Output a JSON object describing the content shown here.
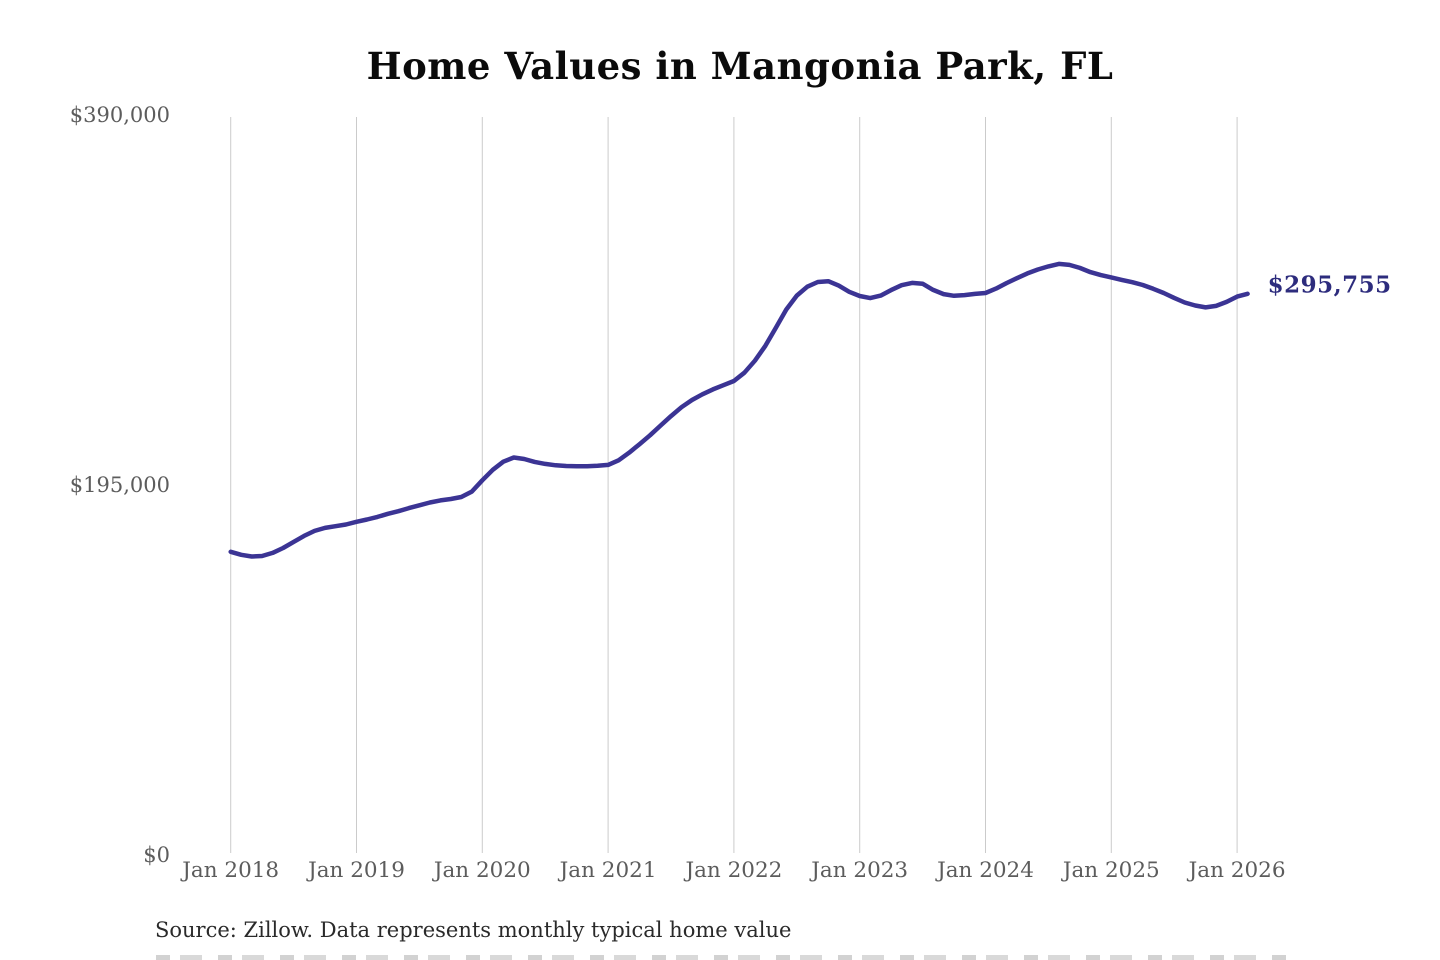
{
  "page": {
    "background": "#ffffff"
  },
  "chart": {
    "title": "Home Values in Mangonia Park, FL",
    "source_note": "Source: Zillow. Data represents monthly typical home value",
    "annotation_label": "$295,755",
    "colors": {
      "line": "#3b3494",
      "annotation": "#2d2c7d",
      "gridline": "#cbcbcb",
      "axis_text": "#5c5c5c",
      "title_text": "#0b0b0b"
    }
  },
  "chart_data": {
    "type": "line",
    "title": "Home Values in Mangonia Park, FL",
    "xlabel": "",
    "ylabel": "",
    "ylim": [
      0,
      390000
    ],
    "grid": "vertical-only",
    "legend": "none",
    "x_tick_labels": [
      "Jan 2018",
      "Jan 2019",
      "Jan 2020",
      "Jan 2021",
      "Jan 2022",
      "Jan 2023",
      "Jan 2024",
      "Jan 2025",
      "Jan 2026"
    ],
    "y_ticks": [
      {
        "label": "$390,000",
        "value": 390000
      },
      {
        "label": "$195,000",
        "value": 195000
      },
      {
        "label": "$0",
        "value": 0
      }
    ],
    "series": [
      {
        "name": "Monthly typical home value",
        "end_label": "$295,755",
        "end_value": 295755,
        "months": [
          "2018-01",
          "2018-02",
          "2018-03",
          "2018-04",
          "2018-05",
          "2018-06",
          "2018-07",
          "2018-08",
          "2018-09",
          "2018-10",
          "2018-11",
          "2018-12",
          "2019-01",
          "2019-02",
          "2019-03",
          "2019-04",
          "2019-05",
          "2019-06",
          "2019-07",
          "2019-08",
          "2019-09",
          "2019-10",
          "2019-11",
          "2019-12",
          "2020-01",
          "2020-02",
          "2020-03",
          "2020-04",
          "2020-05",
          "2020-06",
          "2020-07",
          "2020-08",
          "2020-09",
          "2020-10",
          "2020-11",
          "2020-12",
          "2021-01",
          "2021-02",
          "2021-03",
          "2021-04",
          "2021-05",
          "2021-06",
          "2021-07",
          "2021-08",
          "2021-09",
          "2021-10",
          "2021-11",
          "2021-12",
          "2022-01",
          "2022-02",
          "2022-03",
          "2022-04",
          "2022-05",
          "2022-06",
          "2022-07",
          "2022-08",
          "2022-09",
          "2022-10",
          "2022-11",
          "2022-12",
          "2023-01",
          "2023-02",
          "2023-03",
          "2023-04",
          "2023-05",
          "2023-06",
          "2023-07",
          "2023-08",
          "2023-09",
          "2023-10",
          "2023-11",
          "2023-12",
          "2024-01",
          "2024-02",
          "2024-03",
          "2024-04",
          "2024-05",
          "2024-06",
          "2024-07",
          "2024-08",
          "2024-09",
          "2024-10",
          "2024-11",
          "2024-12",
          "2025-01",
          "2025-02",
          "2025-03",
          "2025-04",
          "2025-05",
          "2025-06",
          "2025-07",
          "2025-08",
          "2025-09",
          "2025-10",
          "2025-11",
          "2025-12",
          "2026-01",
          "2026-02"
        ],
        "values": [
          159800,
          158200,
          157300,
          157600,
          159200,
          161800,
          165000,
          168200,
          170800,
          172400,
          173300,
          174200,
          175600,
          176800,
          178200,
          179800,
          181200,
          182800,
          184300,
          185800,
          186900,
          187600,
          188700,
          191500,
          197500,
          203000,
          207300,
          209500,
          208700,
          207200,
          206100,
          205400,
          205000,
          204900,
          204900,
          205100,
          205600,
          208000,
          212000,
          216500,
          221200,
          226300,
          231300,
          236000,
          239800,
          242800,
          245400,
          247600,
          249800,
          254200,
          260500,
          268300,
          277800,
          287500,
          294800,
          299500,
          302000,
          302400,
          300100,
          296800,
          294600,
          293500,
          294800,
          297700,
          300300,
          301500,
          301100,
          297800,
          295600,
          294700,
          295100,
          295700,
          296200,
          298500,
          301400,
          304000,
          306500,
          308600,
          310200,
          311500,
          311000,
          309400,
          307200,
          305600,
          304400,
          303100,
          301900,
          300400,
          298400,
          296200,
          293600,
          291200,
          289600,
          288600,
          289400,
          291500,
          294300,
          295755
        ]
      }
    ]
  }
}
